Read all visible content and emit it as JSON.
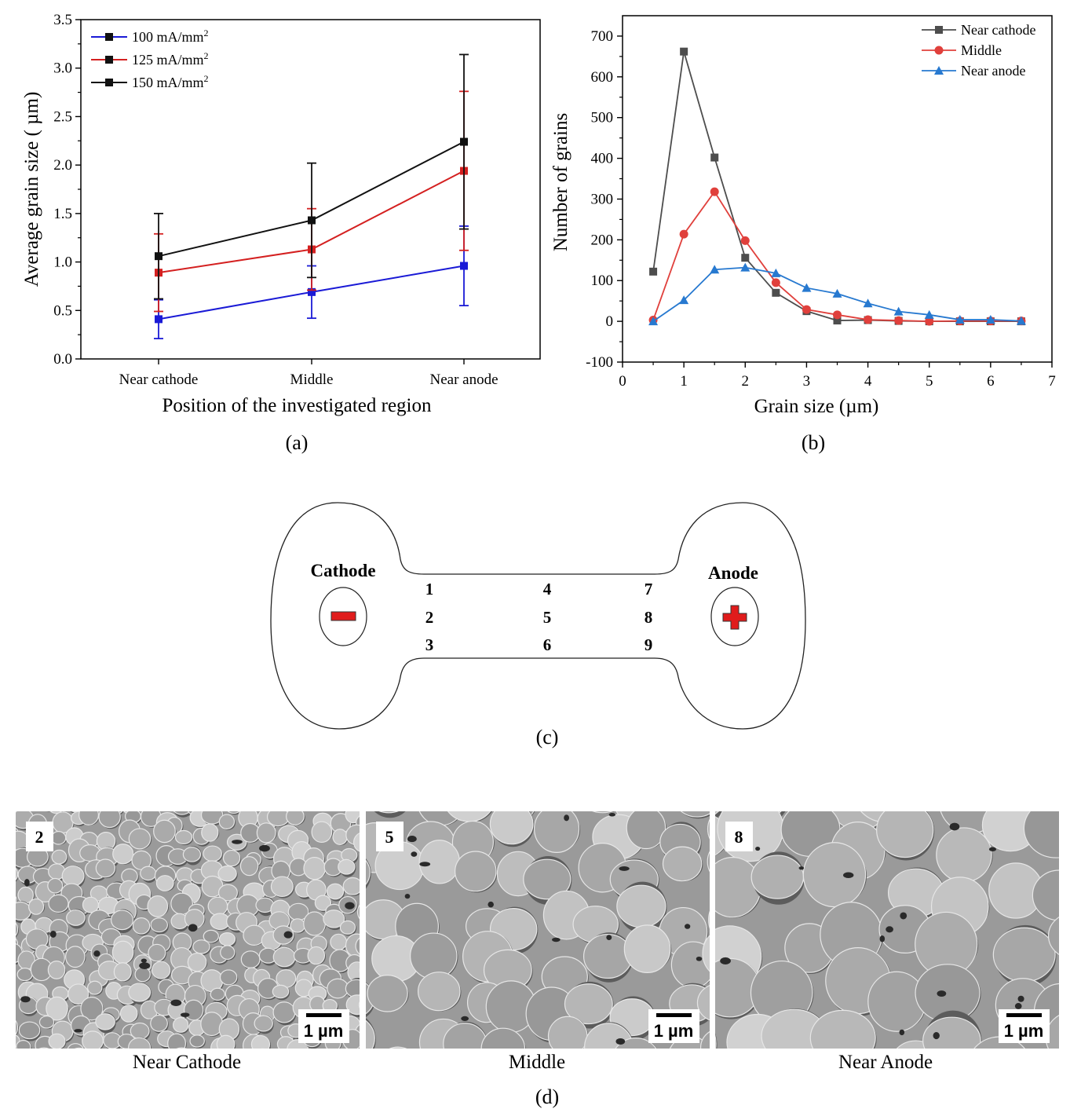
{
  "chart_data": [
    {
      "id": "a",
      "type": "line",
      "caption": "(a)",
      "xlabel": "Position of the investigated region",
      "ylabel": "Average grain size ( µm)",
      "categories": [
        "Near cathode",
        "Middle",
        "Near anode"
      ],
      "ylim": [
        0,
        3.5
      ],
      "yticks": [
        "0.0",
        "0.5",
        "1.0",
        "1.5",
        "2.0",
        "2.5",
        "3.0",
        "3.5"
      ],
      "legend_position": "top-left",
      "series": [
        {
          "name_base": "100 mA/mm",
          "name_sup": "2",
          "color": "#1a1ad6",
          "values": [
            0.41,
            0.69,
            0.96
          ],
          "err_low": [
            0.21,
            0.42,
            0.55
          ],
          "err_high": [
            0.61,
            0.96,
            1.37
          ]
        },
        {
          "name_base": "125 mA/mm",
          "name_sup": "2",
          "color": "#d42020",
          "values": [
            0.89,
            1.13,
            1.94
          ],
          "err_low": [
            0.49,
            0.71,
            1.12
          ],
          "err_high": [
            1.29,
            1.55,
            2.76
          ]
        },
        {
          "name_base": "150 mA/mm",
          "name_sup": "2",
          "color": "#111111",
          "values": [
            1.06,
            1.43,
            2.24
          ],
          "err_low": [
            0.62,
            0.84,
            1.34
          ],
          "err_high": [
            1.5,
            2.02,
            3.14
          ]
        }
      ]
    },
    {
      "id": "b",
      "type": "line",
      "caption": "(b)",
      "xlabel": "Grain size (µm)",
      "ylabel": "Number of grains",
      "xlim": [
        0,
        7
      ],
      "ylim": [
        -100,
        750
      ],
      "xticks": [
        "0",
        "1",
        "2",
        "3",
        "4",
        "5",
        "6",
        "7"
      ],
      "yticks": [
        "-100",
        "0",
        "100",
        "200",
        "300",
        "400",
        "500",
        "600",
        "700"
      ],
      "legend_position": "top-right",
      "x": [
        0.5,
        1.0,
        1.5,
        2.0,
        2.5,
        3.0,
        3.5,
        4.0,
        4.5,
        5.0,
        5.5,
        6.0,
        6.5
      ],
      "series": [
        {
          "name": "Near cathode",
          "color": "#4d4d4d",
          "marker": "square",
          "values": [
            122,
            662,
            402,
            156,
            70,
            25,
            2,
            3,
            1,
            0,
            0,
            0,
            0
          ]
        },
        {
          "name": "Middle",
          "color": "#e0403c",
          "marker": "circle",
          "values": [
            3,
            214,
            318,
            198,
            95,
            29,
            16,
            4,
            2,
            0,
            1,
            1,
            1
          ]
        },
        {
          "name": "Near anode",
          "color": "#2779d0",
          "marker": "triangle",
          "values": [
            0,
            52,
            127,
            132,
            118,
            82,
            68,
            44,
            24,
            16,
            4,
            4,
            1
          ]
        }
      ]
    }
  ],
  "diagram": {
    "caption": "(c)",
    "cathode_label": "Cathode",
    "anode_label": "Anode",
    "minus_color": "#e01c1c",
    "plus_color": "#e01c1c",
    "positions": [
      "1",
      "2",
      "3",
      "4",
      "5",
      "6",
      "7",
      "8",
      "9"
    ]
  },
  "micrographs": {
    "caption": "(d)",
    "panels": [
      {
        "badge": "2",
        "scale": "1 µm",
        "label": "Near Cathode"
      },
      {
        "badge": "5",
        "scale": "1 µm",
        "label": "Middle"
      },
      {
        "badge": "8",
        "scale": "1 µm",
        "label": "Near Anode"
      }
    ]
  }
}
